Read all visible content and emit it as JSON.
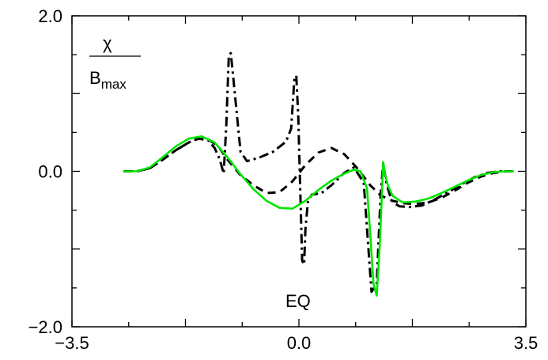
{
  "chart_data": {
    "type": "line",
    "title": "",
    "xlabel": "",
    "ylabel": "",
    "xlim": [
      -3.5,
      3.5
    ],
    "ylim": [
      -2.0,
      2.0
    ],
    "x_ticks": [
      -3.5,
      0.0,
      3.5
    ],
    "x_tick_labels": [
      "−3.5",
      "0.0",
      "3.5"
    ],
    "y_ticks": [
      -2.0,
      0.0,
      2.0
    ],
    "y_tick_labels": [
      "−2.0",
      "0.0",
      "2.0"
    ],
    "grid": false,
    "annotations": {
      "ylabel_numerator": "χ",
      "ylabel_denominator_main": "B",
      "ylabel_denominator_sub": "max",
      "eq_label": "EQ"
    },
    "series": [
      {
        "color": "#000000",
        "dash": "dashdot",
        "x": [
          -2.7,
          -2.5,
          -2.3,
          -2.1,
          -1.9,
          -1.7,
          -1.55,
          -1.4,
          -1.3,
          -1.22,
          -1.16,
          -1.12,
          -1.08,
          -1.05,
          -1.0,
          -0.9,
          -0.8,
          -0.6,
          -0.4,
          -0.2,
          -0.12,
          -0.07,
          -0.04,
          -0.01,
          0.02,
          0.05,
          0.08,
          0.1,
          0.14,
          0.2,
          0.35,
          0.5,
          0.7,
          0.85,
          1.0,
          1.12,
          1.2,
          1.26,
          1.3,
          1.35,
          1.4,
          1.45,
          1.55,
          1.7,
          1.9,
          2.1,
          2.3,
          2.5,
          2.7,
          2.9,
          3.1,
          3.3
        ],
        "y": [
          0.0,
          0.0,
          0.04,
          0.15,
          0.27,
          0.37,
          0.42,
          0.4,
          0.3,
          0.15,
          -0.03,
          0.6,
          1.5,
          1.52,
          1.1,
          0.25,
          0.13,
          0.18,
          0.25,
          0.38,
          0.55,
          1.2,
          1.23,
          0.7,
          -0.2,
          -1.15,
          -1.2,
          -0.75,
          -0.38,
          -0.3,
          -0.28,
          -0.18,
          -0.02,
          0.05,
          -0.15,
          -1.55,
          -1.45,
          -0.3,
          0.1,
          -0.15,
          -0.3,
          -0.4,
          -0.45,
          -0.46,
          -0.44,
          -0.36,
          -0.27,
          -0.17,
          -0.08,
          -0.02,
          0.0,
          0.0
        ]
      },
      {
        "color": "#000000",
        "dash": "dashed",
        "x": [
          -2.7,
          -2.5,
          -2.3,
          -2.1,
          -1.9,
          -1.7,
          -1.55,
          -1.4,
          -1.25,
          -1.1,
          -0.9,
          -0.7,
          -0.5,
          -0.3,
          -0.1,
          0.1,
          0.3,
          0.5,
          0.7,
          0.9,
          1.1,
          1.25,
          1.35,
          1.45,
          1.6,
          1.8,
          2.0,
          2.2,
          2.4,
          2.6,
          2.8,
          3.0,
          3.2,
          3.3
        ],
        "y": [
          0.0,
          0.0,
          0.04,
          0.15,
          0.27,
          0.37,
          0.42,
          0.41,
          0.33,
          0.15,
          -0.05,
          -0.18,
          -0.28,
          -0.27,
          -0.13,
          0.08,
          0.24,
          0.3,
          0.22,
          0.04,
          -0.18,
          -0.3,
          -0.35,
          -0.38,
          -0.41,
          -0.42,
          -0.4,
          -0.34,
          -0.25,
          -0.15,
          -0.07,
          -0.02,
          0.0,
          0.0
        ]
      },
      {
        "color": "#00e600",
        "dash": "solid",
        "x": [
          -2.7,
          -2.5,
          -2.3,
          -2.1,
          -1.9,
          -1.7,
          -1.5,
          -1.3,
          -1.1,
          -0.9,
          -0.7,
          -0.5,
          -0.3,
          -0.1,
          0.1,
          0.3,
          0.5,
          0.7,
          0.85,
          0.95,
          1.05,
          1.1,
          1.15,
          1.2,
          1.25,
          1.3,
          1.33,
          1.38,
          1.45,
          1.6,
          1.8,
          2.0,
          2.2,
          2.4,
          2.6,
          2.8,
          3.0,
          3.2,
          3.3
        ],
        "y": [
          0.0,
          0.0,
          0.05,
          0.18,
          0.32,
          0.42,
          0.45,
          0.37,
          0.18,
          -0.04,
          -0.23,
          -0.38,
          -0.47,
          -0.48,
          -0.38,
          -0.24,
          -0.12,
          -0.03,
          0.02,
          0.0,
          -0.22,
          -0.8,
          -1.45,
          -1.6,
          -0.9,
          0.12,
          -0.05,
          -0.2,
          -0.32,
          -0.4,
          -0.39,
          -0.35,
          -0.28,
          -0.2,
          -0.12,
          -0.05,
          -0.01,
          0.0,
          0.0
        ]
      }
    ]
  }
}
